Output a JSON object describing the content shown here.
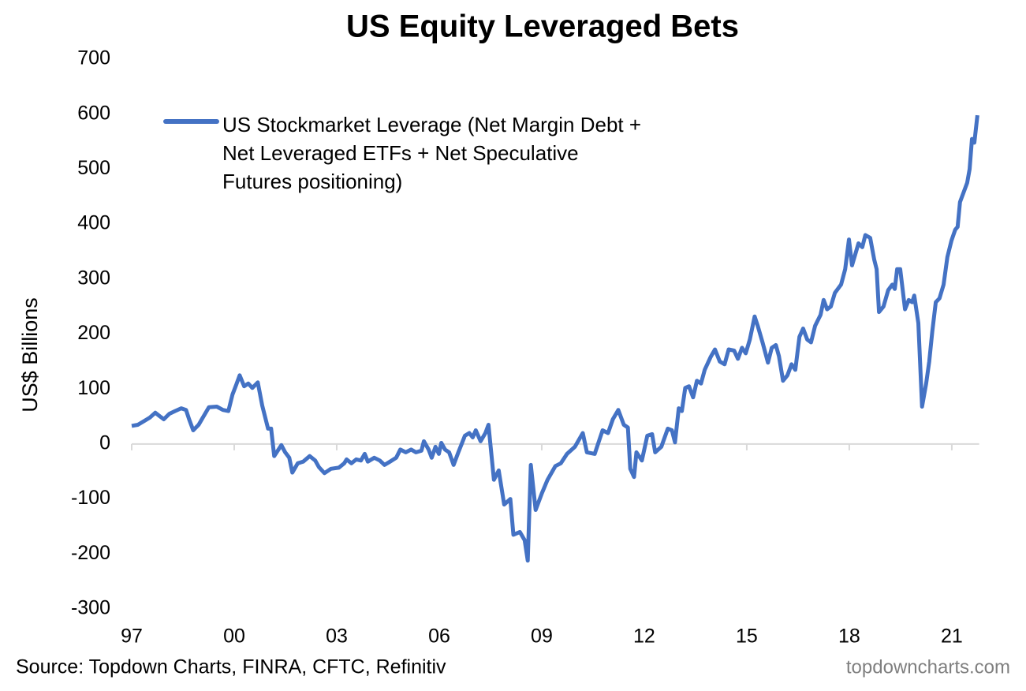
{
  "chart_data": {
    "type": "line",
    "title": "US Equity Leveraged Bets",
    "y_label": "US$ Billions",
    "source": "Source: Topdown Charts, FINRA, CFTC, Refinitiv",
    "watermark": "topdowncharts.com",
    "xlim": [
      1997,
      2021.8
    ],
    "xticks": [
      {
        "value": 1997,
        "label": "97"
      },
      {
        "value": 2000,
        "label": "00"
      },
      {
        "value": 2003,
        "label": "03"
      },
      {
        "value": 2006,
        "label": "06"
      },
      {
        "value": 2009,
        "label": "09"
      },
      {
        "value": 2012,
        "label": "12"
      },
      {
        "value": 2015,
        "label": "15"
      },
      {
        "value": 2018,
        "label": "18"
      },
      {
        "value": 2021,
        "label": "21"
      }
    ],
    "ylim": [
      -300,
      700
    ],
    "yticks": [
      -300,
      -200,
      -100,
      0,
      100,
      200,
      300,
      400,
      500,
      600,
      700
    ],
    "grid": false,
    "legend": "top-left",
    "x": [
      1997.0,
      1997.18,
      1997.37,
      1997.53,
      1997.69,
      1997.83,
      1997.94,
      1998.1,
      1998.27,
      1998.45,
      1998.59,
      1998.68,
      1998.8,
      1998.96,
      1999.1,
      1999.26,
      1999.49,
      1999.67,
      1999.83,
      1999.95,
      2000.06,
      2000.16,
      2000.29,
      2000.41,
      2000.53,
      2000.69,
      2000.82,
      2000.99,
      2001.08,
      2001.17,
      2001.38,
      2001.49,
      2001.61,
      2001.7,
      2001.86,
      2002.02,
      2002.21,
      2002.37,
      2002.48,
      2002.64,
      2002.83,
      2003.06,
      2003.22,
      2003.29,
      2003.43,
      2003.57,
      2003.71,
      2003.82,
      2003.91,
      2004.1,
      2004.26,
      2004.4,
      2004.56,
      2004.74,
      2004.86,
      2005.02,
      2005.18,
      2005.32,
      2005.48,
      2005.55,
      2005.69,
      2005.78,
      2005.89,
      2005.99,
      2006.06,
      2006.17,
      2006.29,
      2006.42,
      2006.56,
      2006.75,
      2006.88,
      2006.98,
      2007.07,
      2007.21,
      2007.35,
      2007.44,
      2007.6,
      2007.74,
      2007.9,
      2008.08,
      2008.17,
      2008.36,
      2008.5,
      2008.59,
      2008.68,
      2008.82,
      2009.0,
      2009.17,
      2009.4,
      2009.56,
      2009.74,
      2009.97,
      2010.2,
      2010.32,
      2010.55,
      2010.78,
      2010.94,
      2011.08,
      2011.24,
      2011.4,
      2011.52,
      2011.59,
      2011.7,
      2011.77,
      2011.93,
      2012.09,
      2012.23,
      2012.32,
      2012.5,
      2012.69,
      2012.81,
      2012.9,
      2013.01,
      2013.1,
      2013.2,
      2013.31,
      2013.43,
      2013.54,
      2013.66,
      2013.77,
      2013.94,
      2014.07,
      2014.21,
      2014.35,
      2014.47,
      2014.63,
      2014.74,
      2014.86,
      2014.97,
      2015.09,
      2015.23,
      2015.32,
      2015.46,
      2015.62,
      2015.73,
      2015.85,
      2015.94,
      2016.06,
      2016.19,
      2016.31,
      2016.42,
      2016.54,
      2016.65,
      2016.77,
      2016.88,
      2017.0,
      2017.16,
      2017.25,
      2017.35,
      2017.46,
      2017.58,
      2017.76,
      2017.88,
      2017.99,
      2018.08,
      2018.27,
      2018.38,
      2018.47,
      2018.61,
      2018.73,
      2018.8,
      2018.87,
      2019.0,
      2019.14,
      2019.26,
      2019.33,
      2019.4,
      2019.49,
      2019.63,
      2019.74,
      2019.84,
      2019.9,
      2020.02,
      2020.13,
      2020.25,
      2020.34,
      2020.43,
      2020.53,
      2020.64,
      2020.76,
      2020.87,
      2020.99,
      2021.1,
      2021.17,
      2021.24,
      2021.36,
      2021.45,
      2021.52,
      2021.59,
      2021.66,
      2021.75
    ],
    "series": [
      {
        "name": "US Stockmarket Leverage (Net Margin Debt + Net Leveraged ETFs + Net Speculative Futures positioning)",
        "color": "#4472c4",
        "values": [
          33,
          35,
          42,
          48,
          57,
          50,
          45,
          55,
          60,
          65,
          62,
          45,
          25,
          35,
          50,
          67,
          68,
          62,
          60,
          90,
          108,
          125,
          105,
          110,
          102,
          112,
          70,
          28,
          28,
          -22,
          -2,
          -15,
          -25,
          -52,
          -35,
          -32,
          -22,
          -30,
          -42,
          -53,
          -45,
          -43,
          -35,
          -28,
          -35,
          -28,
          -30,
          -18,
          -32,
          -25,
          -30,
          -38,
          -32,
          -25,
          -10,
          -15,
          -10,
          -15,
          -12,
          5,
          -10,
          -25,
          -5,
          -18,
          2,
          -10,
          -15,
          -38,
          -15,
          15,
          20,
          12,
          25,
          5,
          20,
          35,
          -65,
          -48,
          -110,
          -100,
          -165,
          -160,
          -175,
          -212,
          -38,
          -120,
          -90,
          -65,
          -40,
          -35,
          -18,
          -5,
          20,
          -15,
          -18,
          25,
          20,
          45,
          62,
          35,
          30,
          -45,
          -60,
          -15,
          -30,
          15,
          18,
          -15,
          -5,
          28,
          25,
          3,
          65,
          60,
          102,
          105,
          85,
          115,
          110,
          135,
          158,
          172,
          150,
          145,
          172,
          170,
          155,
          175,
          165,
          190,
          232,
          215,
          185,
          148,
          175,
          180,
          160,
          115,
          125,
          145,
          135,
          195,
          210,
          190,
          185,
          215,
          235,
          262,
          245,
          250,
          275,
          290,
          318,
          372,
          325,
          365,
          358,
          380,
          375,
          335,
          318,
          240,
          250,
          280,
          290,
          282,
          318,
          318,
          245,
          262,
          258,
          270,
          220,
          68,
          110,
          150,
          205,
          258,
          265,
          290,
          340,
          370,
          390,
          395,
          440,
          460,
          475,
          500,
          555,
          548,
          598
        ]
      }
    ]
  }
}
